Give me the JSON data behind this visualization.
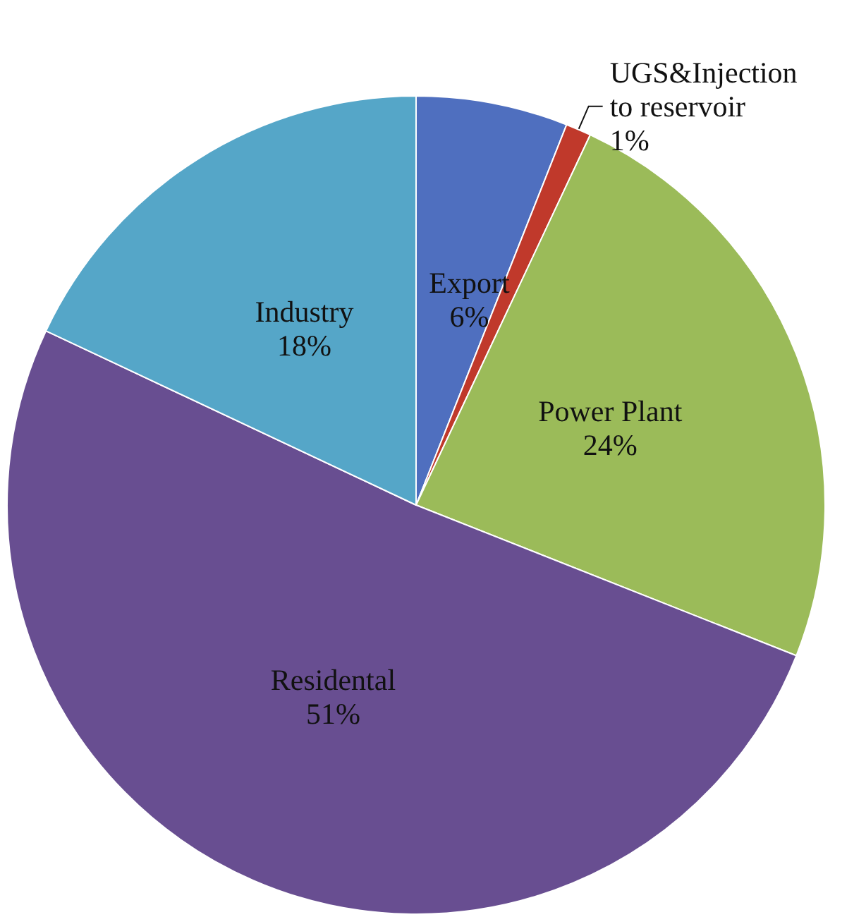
{
  "chart_data": {
    "type": "pie",
    "categories": [
      "Export",
      "UGS&Injection to reservoir",
      "Power Plant",
      "Residental",
      "Industry"
    ],
    "values": [
      6,
      1,
      24,
      51,
      18
    ],
    "value_labels": [
      "6%",
      "1%",
      "24%",
      "51%",
      "18%"
    ],
    "colors": [
      "#4f6fbf",
      "#c0392b",
      "#9bbb59",
      "#684e91",
      "#55a6c8"
    ],
    "legend": false
  }
}
